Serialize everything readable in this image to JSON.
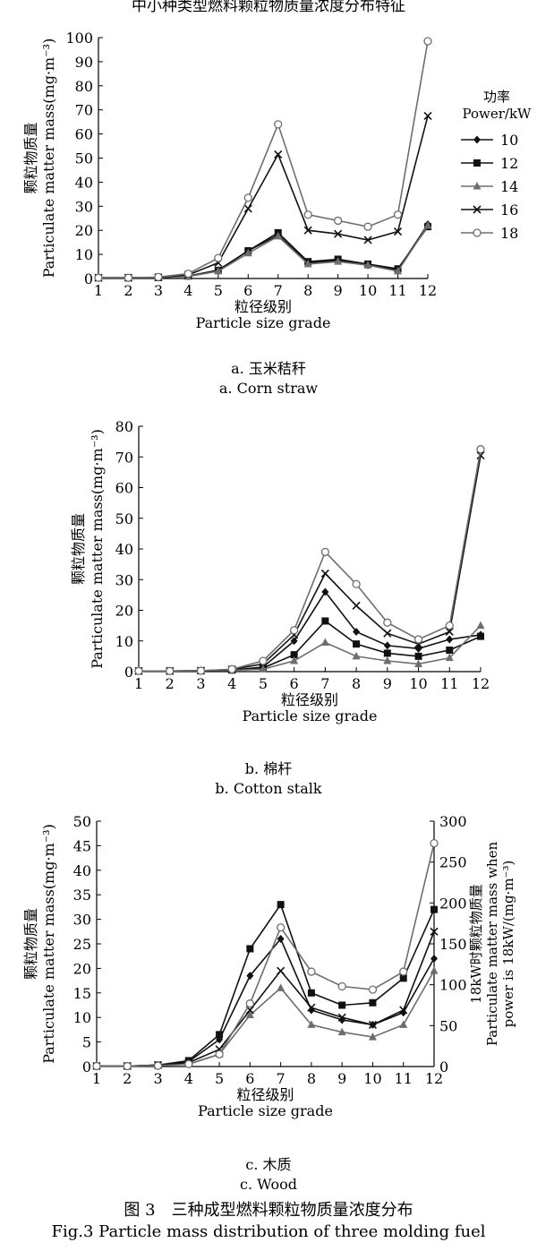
{
  "header": {
    "partial_text": "中小种类型燃料颗粒物质量浓度分布特征"
  },
  "charts": [
    {
      "caption_cn": "a. 玉米秸秆",
      "caption_en": "a. Corn straw"
    },
    {
      "caption_cn": "b. 棉杆",
      "caption_en": "b. Cotton stalk"
    },
    {
      "caption_cn": "c. 木质",
      "caption_en": "c. Wood"
    }
  ],
  "figure": {
    "title_cn": "图 3　三种成型燃料颗粒物质量浓度分布",
    "title_en": "Fig.3 Particle mass distribution of three molding fuel"
  },
  "colors": {
    "dark": "#111111",
    "gray": "#6e6e6e",
    "mid": "#333333"
  },
  "chart_data": [
    {
      "type": "line",
      "title": "a. 玉米秸秆 / a. Corn straw",
      "xlabel_cn": "粒径级别",
      "xlabel_en": "Particle size grade",
      "ylabel_cn": "颗粒物质量",
      "ylabel_en": "Particulate matter mass(mg·m⁻³)",
      "legend_title": [
        "功率",
        "Power/kW"
      ],
      "legend_position": "right",
      "x": [
        1,
        2,
        3,
        4,
        5,
        6,
        7,
        8,
        9,
        10,
        11,
        12
      ],
      "xticks": [
        "1",
        "2",
        "3",
        "4",
        "5",
        "6",
        "7",
        "8",
        "9",
        "10",
        "11",
        "12"
      ],
      "ylim": [
        0,
        100
      ],
      "yticks": [
        "0",
        "10",
        "20",
        "30",
        "40",
        "50",
        "60",
        "70",
        "80",
        "90",
        "100"
      ],
      "series": [
        {
          "name": "10",
          "marker": "diamond",
          "color": "#111111",
          "values": [
            0.3,
            0.3,
            0.4,
            1.0,
            3.5,
            11.5,
            18.0,
            6.5,
            7.5,
            5.5,
            3.5,
            22.5
          ]
        },
        {
          "name": "12",
          "marker": "square",
          "color": "#111111",
          "values": [
            0.3,
            0.3,
            0.4,
            1.0,
            3.3,
            11.5,
            19.0,
            7.0,
            8.0,
            6.0,
            4.0,
            21.5
          ]
        },
        {
          "name": "14",
          "marker": "triangle",
          "color": "#6e6e6e",
          "values": [
            0.3,
            0.3,
            0.4,
            0.8,
            3.0,
            10.5,
            17.5,
            6.0,
            7.0,
            5.5,
            3.0,
            22.0
          ]
        },
        {
          "name": "16",
          "marker": "x",
          "color": "#111111",
          "values": [
            0.3,
            0.3,
            0.5,
            1.5,
            6.5,
            29.0,
            51.5,
            20.0,
            18.5,
            16.0,
            19.5,
            67.5
          ]
        },
        {
          "name": "18",
          "marker": "circle",
          "color": "#6e6e6e",
          "values": [
            0.3,
            0.3,
            0.6,
            2.0,
            8.5,
            33.5,
            64.0,
            26.5,
            24.0,
            21.5,
            26.5,
            98.5
          ]
        }
      ]
    },
    {
      "type": "line",
      "title": "b. 棉杆 / b. Cotton stalk",
      "xlabel_cn": "粒径级别",
      "xlabel_en": "Particle size grade",
      "ylabel_cn": "颗粒物质量",
      "ylabel_en": "Particulate matter mass(mg·m⁻³)",
      "x": [
        1,
        2,
        3,
        4,
        5,
        6,
        7,
        8,
        9,
        10,
        11,
        12
      ],
      "xticks": [
        "1",
        "2",
        "3",
        "4",
        "5",
        "6",
        "7",
        "8",
        "9",
        "10",
        "11",
        "12"
      ],
      "ylim": [
        0,
        80
      ],
      "yticks": [
        "0",
        "10",
        "20",
        "30",
        "40",
        "50",
        "60",
        "70",
        "80"
      ],
      "series": [
        {
          "name": "10",
          "marker": "diamond",
          "color": "#111111",
          "values": [
            0.2,
            0.2,
            0.3,
            0.5,
            1.5,
            10.0,
            26.0,
            13.0,
            8.5,
            7.5,
            10.5,
            12.0
          ]
        },
        {
          "name": "12",
          "marker": "square",
          "color": "#111111",
          "values": [
            0.2,
            0.2,
            0.3,
            0.5,
            1.2,
            5.5,
            16.5,
            9.0,
            6.0,
            5.0,
            7.0,
            11.5
          ]
        },
        {
          "name": "14",
          "marker": "triangle",
          "color": "#6e6e6e",
          "values": [
            0.2,
            0.2,
            0.3,
            0.4,
            0.8,
            3.5,
            9.5,
            5.0,
            3.5,
            2.5,
            4.5,
            15.0
          ]
        },
        {
          "name": "16",
          "marker": "x",
          "color": "#111111",
          "values": [
            0.2,
            0.2,
            0.3,
            0.7,
            2.5,
            12.0,
            32.0,
            21.5,
            12.5,
            9.0,
            13.0,
            70.5
          ]
        },
        {
          "name": "18",
          "marker": "circle",
          "color": "#6e6e6e",
          "values": [
            0.2,
            0.2,
            0.3,
            0.8,
            3.5,
            13.5,
            39.0,
            28.5,
            16.0,
            10.5,
            15.0,
            72.5
          ]
        }
      ]
    },
    {
      "type": "line",
      "title": "c. 木质 / c. Wood",
      "xlabel_cn": "粒径级别",
      "xlabel_en": "Particle size grade",
      "ylabel_cn": "颗粒物质量",
      "ylabel_en": "Particulate matter mass(mg·m⁻³)",
      "y2label_cn": "18kW时颗粒物质量",
      "y2label_en_1": "Particulate matter mass when",
      "y2label_en_2": "power is 18kW/(mg·m⁻³)",
      "x": [
        1,
        2,
        3,
        4,
        5,
        6,
        7,
        8,
        9,
        10,
        11,
        12
      ],
      "xticks": [
        "1",
        "2",
        "3",
        "4",
        "5",
        "6",
        "7",
        "8",
        "9",
        "10",
        "11",
        "12"
      ],
      "ylim": [
        0,
        50
      ],
      "yticks": [
        "0",
        "5",
        "10",
        "15",
        "20",
        "25",
        "30",
        "35",
        "40",
        "45",
        "50"
      ],
      "y2lim": [
        0,
        300
      ],
      "y2ticks": [
        "0",
        "50",
        "100",
        "150",
        "200",
        "250",
        "300"
      ],
      "series": [
        {
          "name": "10",
          "marker": "diamond",
          "color": "#111111",
          "values": [
            0.1,
            0.1,
            0.3,
            1.0,
            5.5,
            18.5,
            26.0,
            11.5,
            9.5,
            8.5,
            11.0,
            22.0
          ]
        },
        {
          "name": "12",
          "marker": "square",
          "color": "#111111",
          "values": [
            0.1,
            0.1,
            0.3,
            1.2,
            6.5,
            24.0,
            33.0,
            15.0,
            12.5,
            13.0,
            18.0,
            32.0
          ]
        },
        {
          "name": "14",
          "marker": "triangle",
          "color": "#6e6e6e",
          "values": [
            0.1,
            0.1,
            0.2,
            0.5,
            2.5,
            10.5,
            16.0,
            8.5,
            7.0,
            6.0,
            8.5,
            19.5
          ]
        },
        {
          "name": "16",
          "marker": "x",
          "color": "#111111",
          "values": [
            0.1,
            0.1,
            0.3,
            0.8,
            3.5,
            11.5,
            19.5,
            12.0,
            10.0,
            8.5,
            11.5,
            27.5
          ]
        },
        {
          "name": "18",
          "marker": "circle",
          "color": "#6e6e6e",
          "axis": "right",
          "values": [
            0.5,
            0.5,
            1.0,
            3.0,
            15.0,
            77.0,
            170.0,
            116.0,
            98.0,
            94.0,
            116.0,
            273.0
          ]
        }
      ]
    }
  ]
}
